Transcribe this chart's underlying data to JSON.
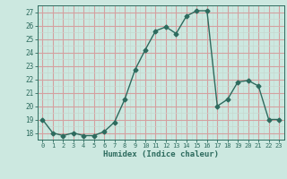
{
  "x": [
    0,
    1,
    2,
    3,
    4,
    5,
    6,
    7,
    8,
    9,
    10,
    11,
    12,
    13,
    14,
    15,
    16,
    17,
    18,
    19,
    20,
    21,
    22,
    23
  ],
  "y": [
    19,
    18,
    17.8,
    18,
    17.8,
    17.8,
    18.1,
    18.8,
    20.5,
    22.7,
    24.2,
    25.6,
    25.9,
    25.4,
    26.7,
    27.1,
    27.1,
    20.0,
    20.5,
    21.8,
    21.9,
    21.5,
    19.0,
    19.0
  ],
  "line_color": "#2d6b5e",
  "marker": "D",
  "marker_size": 2.5,
  "bg_color": "#cce8e0",
  "minor_grid_color": "#c8d8d0",
  "major_grid_color": "#d4a0a0",
  "xlabel": "Humidex (Indice chaleur)",
  "xlim": [
    -0.5,
    23.5
  ],
  "ylim": [
    17.5,
    27.5
  ],
  "yticks": [
    18,
    19,
    20,
    21,
    22,
    23,
    24,
    25,
    26,
    27
  ],
  "xticks": [
    0,
    1,
    2,
    3,
    4,
    5,
    6,
    7,
    8,
    9,
    10,
    11,
    12,
    13,
    14,
    15,
    16,
    17,
    18,
    19,
    20,
    21,
    22,
    23
  ],
  "font_family": "monospace"
}
